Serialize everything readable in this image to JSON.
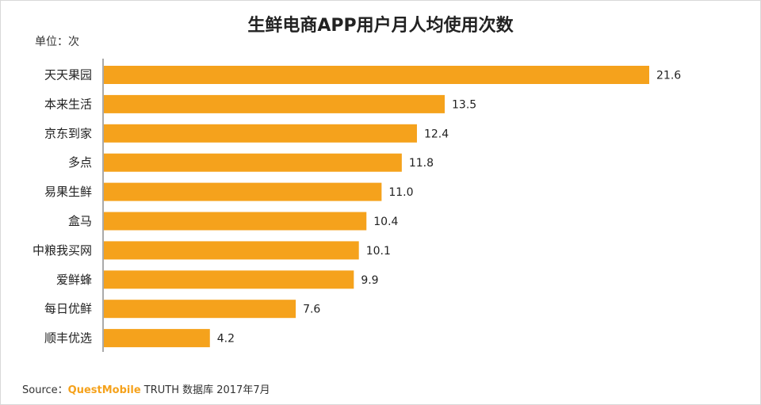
{
  "chart_data": {
    "type": "bar",
    "orientation": "horizontal",
    "title": "生鲜电商APP用户月人均使用次数",
    "unit_label": "单位：次",
    "categories": [
      "天天果园",
      "本来生活",
      "京东到家",
      "多点",
      "易果生鲜",
      "盒马",
      "中粮我买网",
      "爱鲜蜂",
      "每日优鲜",
      "顺丰优选"
    ],
    "values": [
      21.6,
      13.5,
      12.4,
      11.8,
      11.0,
      10.4,
      10.1,
      9.9,
      7.6,
      4.2
    ],
    "value_labels": [
      "21.6",
      "13.5",
      "12.4",
      "11.8",
      "11.0",
      "10.4",
      "10.1",
      "9.9",
      "7.6",
      "4.2"
    ],
    "xlim": [
      0,
      21.6
    ],
    "grid": false,
    "bar_color": "#f5a21c"
  },
  "source": {
    "prefix": "Source：",
    "brand": "QuestMobile",
    "suffix": " TRUTH 数据库 2017年7月"
  },
  "colors": {
    "brand": "#f5a21c",
    "axis": "#555555"
  }
}
